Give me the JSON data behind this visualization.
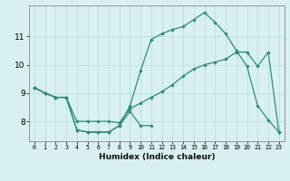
{
  "xlabel": "Humidex (Indice chaleur)",
  "x_values": [
    0,
    1,
    2,
    3,
    4,
    5,
    6,
    7,
    8,
    9,
    10,
    11,
    12,
    13,
    14,
    15,
    16,
    17,
    18,
    19,
    20,
    21,
    22,
    23
  ],
  "line_upper": [
    9.2,
    9.0,
    8.85,
    8.85,
    7.7,
    7.62,
    7.62,
    7.62,
    7.85,
    8.55,
    9.8,
    10.9,
    11.1,
    11.25,
    11.35,
    11.6,
    11.85,
    11.5,
    11.1,
    10.5,
    9.95,
    8.55,
    8.05,
    7.62
  ],
  "line_mid": [
    9.2,
    9.0,
    8.85,
    8.85,
    8.0,
    8.0,
    8.0,
    8.0,
    7.95,
    8.45,
    8.65,
    8.85,
    9.05,
    9.3,
    9.6,
    9.85,
    10.0,
    10.1,
    10.2,
    10.45,
    10.45,
    9.95,
    10.45,
    7.62
  ],
  "line_low": [
    9.2,
    9.0,
    8.85,
    8.85,
    7.7,
    7.62,
    7.62,
    7.62,
    7.85,
    8.35,
    7.85,
    7.85,
    null,
    null,
    null,
    null,
    null,
    null,
    null,
    null,
    null,
    null,
    null,
    null
  ],
  "line_color": "#2e8b72",
  "background_color": "#d8f0f0",
  "grid_color": "#b8dada",
  "ylim": [
    7.3,
    12.1
  ],
  "xlim": [
    -0.5,
    23.5
  ],
  "yticks": [
    8,
    9,
    10,
    11
  ],
  "xticks": [
    0,
    1,
    2,
    3,
    4,
    5,
    6,
    7,
    8,
    9,
    10,
    11,
    12,
    13,
    14,
    15,
    16,
    17,
    18,
    19,
    20,
    21,
    22,
    23
  ]
}
